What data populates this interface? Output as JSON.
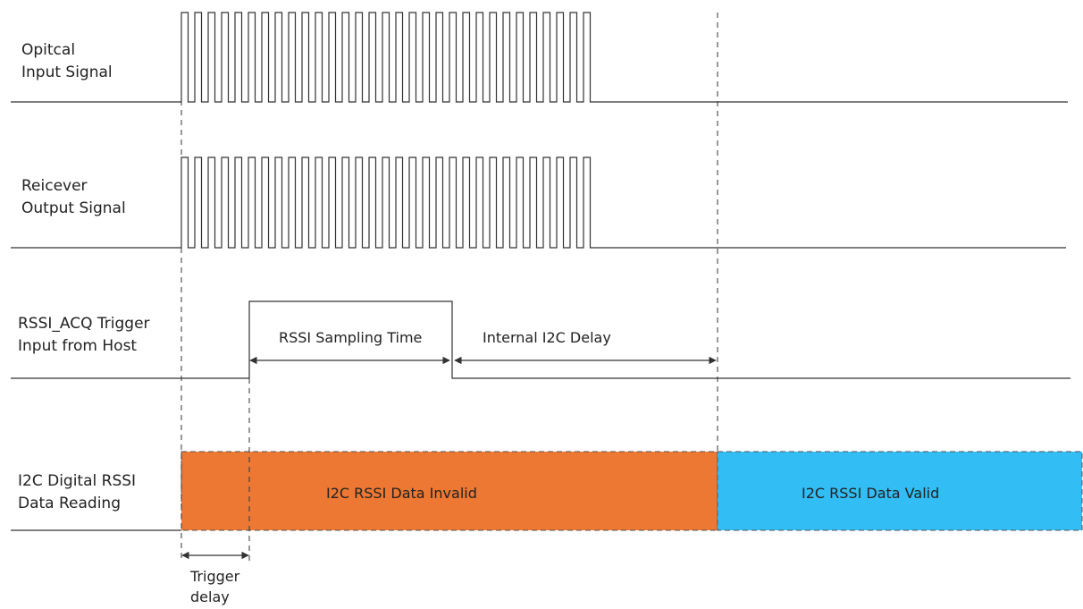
{
  "signals": [
    {
      "id": "optical",
      "label_line1": "Opitcal",
      "label_line2": "Input Signal"
    },
    {
      "id": "receiver",
      "label_line1": "Reicever",
      "label_line2": "Output Signal"
    },
    {
      "id": "trigger",
      "label_line1": "RSSI_ACQ Trigger",
      "label_line2": "Input from Host"
    },
    {
      "id": "i2c",
      "label_line1": "I2C Digital RSSI",
      "label_line2": "Data Reading"
    }
  ],
  "annotations": {
    "sampling_time": "RSSI Sampling Time",
    "i2c_delay": "Internal I2C Delay",
    "trigger_delay_line1": "Trigger",
    "trigger_delay_line2": "delay"
  },
  "data_regions": {
    "invalid_label": "I2C RSSI Data Invalid",
    "valid_label": "I2C RSSI Data Valid"
  },
  "colors": {
    "invalid": "#ED7833",
    "valid": "#33BDF5",
    "line": "#333333"
  }
}
